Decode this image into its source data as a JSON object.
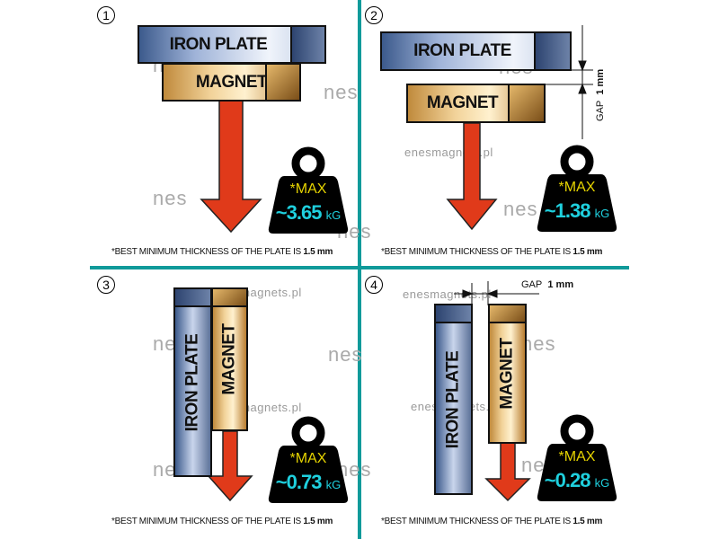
{
  "watermark_url": "enesmagnets.pl",
  "watermark_logo": "nes",
  "iron_plate_label": "IRON PLATE",
  "iron_plate_label_vertical": "IRON  PLATE",
  "magnet_label": "MAGNET",
  "footnote_prefix": "*BEST MINIMUM THICKNESS OF THE PLATE IS ",
  "footnote_value": "1.5 mm",
  "max_label": "*MAX",
  "unit": "kG",
  "gap_label": "GAP",
  "gap_value": "1 mm",
  "colors": {
    "divider": "#109a9a",
    "max_text": "#e6d400",
    "value_text": "#1fd0de",
    "arrow": "#e03a1a"
  },
  "panels": [
    {
      "number": "1",
      "value": "~3.65"
    },
    {
      "number": "2",
      "value": "~1.38"
    },
    {
      "number": "3",
      "value": "~0.73"
    },
    {
      "number": "4",
      "value": "~0.28"
    }
  ]
}
